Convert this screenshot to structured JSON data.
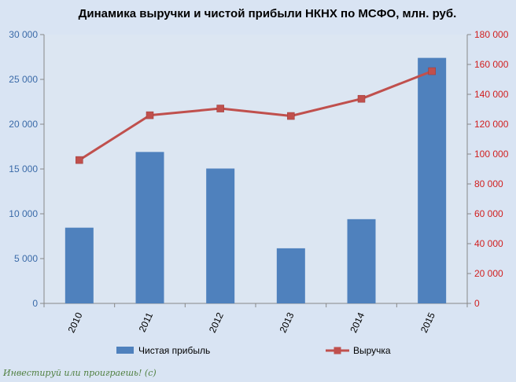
{
  "chart_data": {
    "type": "bar",
    "title": "Динамика выручки  и чистой прибыли НКНХ по МСФО, млн. руб.",
    "categories": [
      "2010",
      "2011",
      "2012",
      "2013",
      "2014",
      "2015"
    ],
    "series": [
      {
        "name": "Чистая прибыль",
        "type": "bar",
        "axis": "left",
        "color": "#4f81bd",
        "values": [
          8450,
          16900,
          15050,
          6150,
          9400,
          27400
        ]
      },
      {
        "name": "Выручка",
        "type": "line",
        "axis": "right",
        "color": "#c0504d",
        "values": [
          96000,
          126000,
          130500,
          125500,
          137000,
          155500
        ]
      }
    ],
    "y_left": {
      "min": 0,
      "max": 30000,
      "ticks": [
        "0",
        "5 000",
        "10 000",
        "15 000",
        "20 000",
        "25 000",
        "30 000"
      ],
      "color": "#3a6aa8"
    },
    "y_right": {
      "min": 0,
      "max": 180000,
      "ticks": [
        "0",
        "20 000",
        "40 000",
        "60 000",
        "80 000",
        "100 000",
        "120 000",
        "140 000",
        "160 000",
        "180 000"
      ],
      "color": "#d11f1f"
    },
    "legend_position": "bottom",
    "grid": false
  },
  "watermark": "Инвестируй или проиграешь! (с)"
}
